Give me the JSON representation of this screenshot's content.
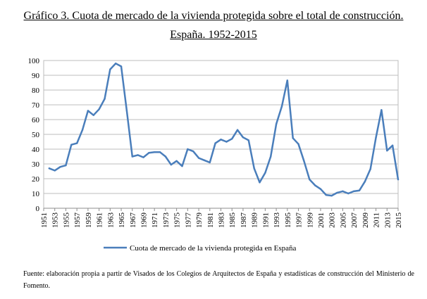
{
  "chart_data": {
    "type": "line",
    "title_line1": "Gráfico 3. Cuota de mercado de la vivienda protegida sobre el total de construcción.",
    "title_line2": "España. 1952-2015",
    "xlabel": "",
    "ylabel": "",
    "ylim": [
      0,
      100
    ],
    "yticks": [
      0,
      10,
      20,
      30,
      40,
      50,
      60,
      70,
      80,
      90,
      100
    ],
    "xlim": [
      1951,
      2015
    ],
    "xticks": [
      1951,
      1953,
      1955,
      1957,
      1959,
      1961,
      1963,
      1965,
      1967,
      1969,
      1971,
      1973,
      1975,
      1977,
      1979,
      1981,
      1983,
      1985,
      1987,
      1989,
      1991,
      1993,
      1995,
      1997,
      1999,
      2001,
      2003,
      2005,
      2007,
      2009,
      2011,
      2013,
      2015
    ],
    "grid": true,
    "legend_position": "bottom",
    "series": [
      {
        "name": "Cuota de mercado de la vivienda protegida en España",
        "color": "#4a7ebb",
        "x": [
          1952,
          1953,
          1954,
          1955,
          1956,
          1957,
          1958,
          1959,
          1960,
          1961,
          1962,
          1963,
          1964,
          1965,
          1966,
          1967,
          1968,
          1969,
          1970,
          1971,
          1972,
          1973,
          1974,
          1975,
          1976,
          1977,
          1978,
          1979,
          1980,
          1981,
          1982,
          1983,
          1984,
          1985,
          1986,
          1987,
          1988,
          1989,
          1990,
          1991,
          1992,
          1993,
          1994,
          1995,
          1996,
          1997,
          1998,
          1999,
          2000,
          2001,
          2002,
          2003,
          2004,
          2005,
          2006,
          2007,
          2008,
          2009,
          2010,
          2011,
          2012,
          2013,
          2014,
          2015
        ],
        "values": [
          27,
          25.5,
          28,
          29,
          43,
          44,
          53,
          66,
          63,
          67,
          74,
          94,
          98,
          96,
          66,
          35,
          36,
          34.5,
          37.5,
          38,
          38,
          35,
          29.5,
          32,
          28.5,
          40,
          38.5,
          34,
          32.5,
          31,
          44,
          46.5,
          45,
          47,
          53,
          48,
          46,
          27,
          17.5,
          24,
          35,
          57,
          69,
          86.5,
          47.5,
          43.5,
          32,
          19.5,
          15.5,
          13,
          9,
          8.5,
          10.5,
          11.5,
          10,
          11.5,
          12,
          18,
          26.5,
          48,
          66.5,
          39,
          42.5,
          19.5
        ]
      }
    ]
  },
  "footnote": "Fuente: elaboración propia a partir de Visados de los Colegios de Arquitectos de España y estadísticas de construcción del Ministerio de Fomento."
}
